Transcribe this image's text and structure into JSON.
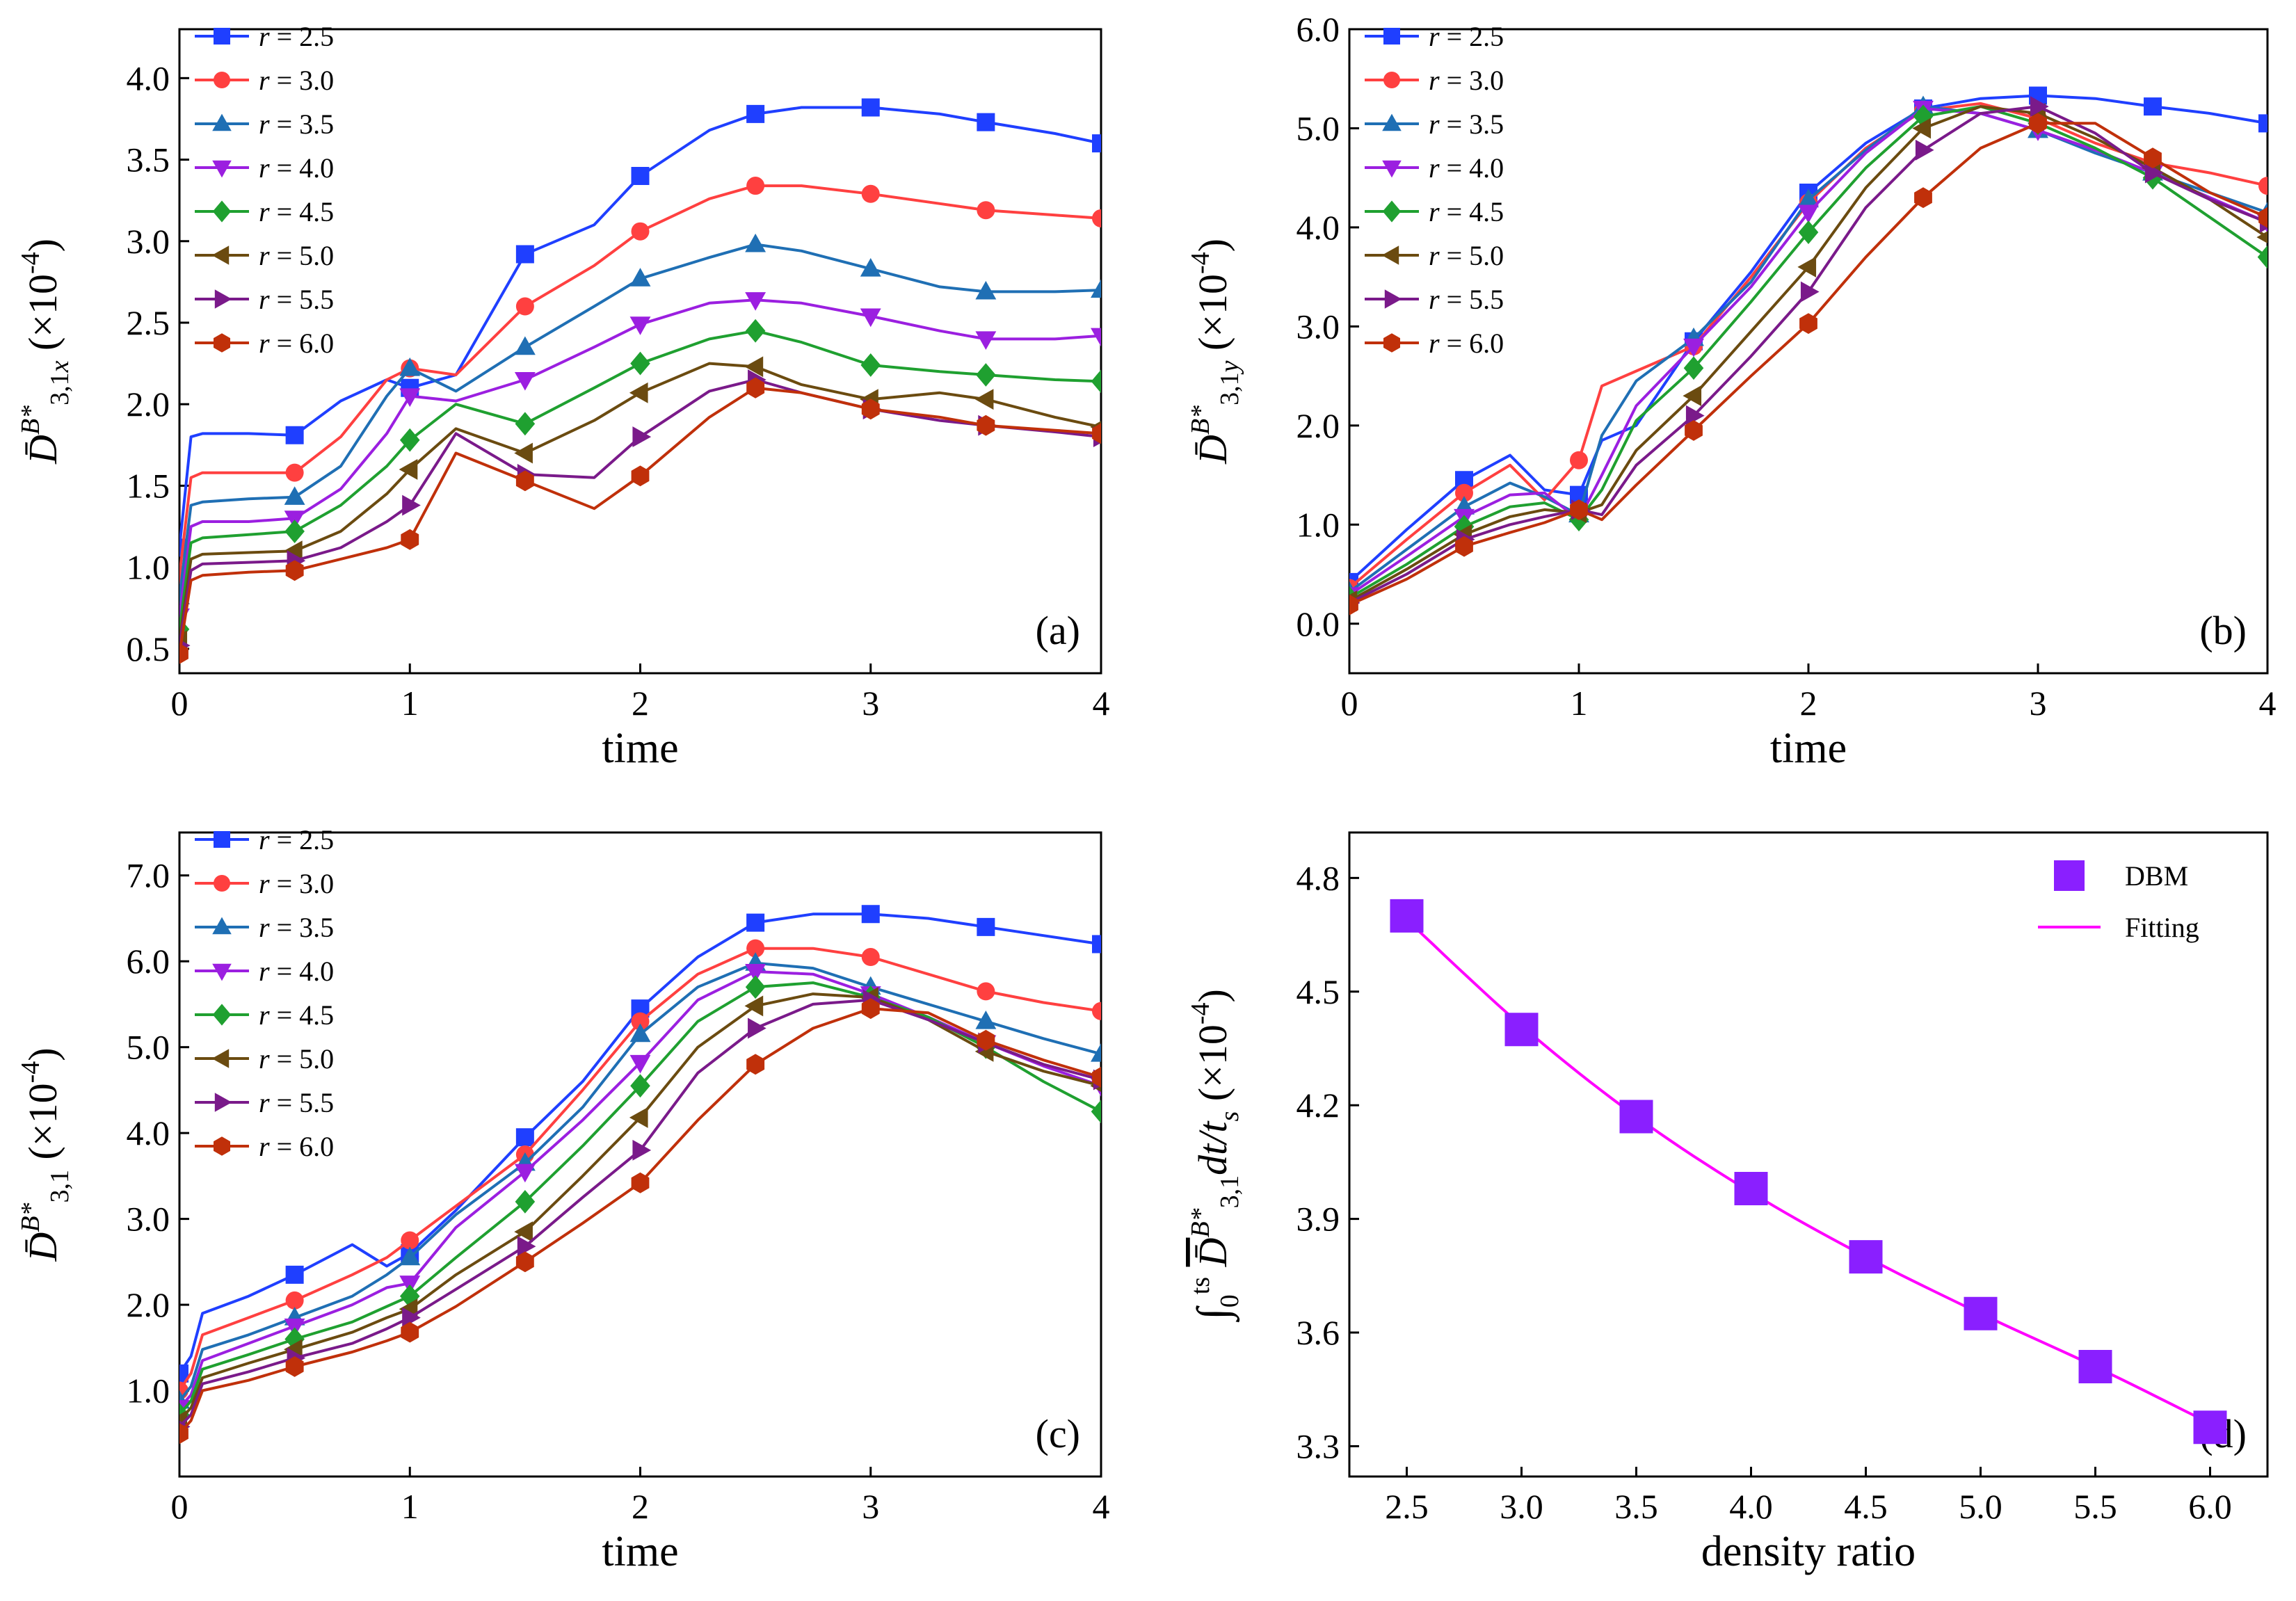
{
  "chart_data": [
    {
      "panel": "a",
      "type": "line",
      "panel_label": "(a)",
      "xlabel": "time",
      "ylabel": "D̄B*3,1x (×10⁻⁴)",
      "xlim": [
        0,
        4
      ],
      "ylim": [
        0.35,
        4.3
      ],
      "xticks": [
        0,
        1,
        2,
        3,
        4
      ],
      "yticks": [
        0.5,
        1.0,
        1.5,
        2.0,
        2.5,
        3.0,
        3.5,
        4.0
      ],
      "x": [
        0,
        0.05,
        0.1,
        0.3,
        0.5,
        0.7,
        0.9,
        1.0,
        1.2,
        1.5,
        1.8,
        2.0,
        2.3,
        2.5,
        2.7,
        3.0,
        3.3,
        3.5,
        3.8,
        4.0
      ],
      "legend": "top-left",
      "series": [
        {
          "name": "r = 2.5",
          "marker": "square",
          "color": "#1f3fff",
          "values": [
            1.12,
            1.8,
            1.82,
            1.82,
            1.81,
            2.02,
            2.15,
            2.1,
            2.18,
            2.92,
            3.1,
            3.4,
            3.68,
            3.78,
            3.82,
            3.82,
            3.78,
            3.73,
            3.66,
            3.6
          ]
        },
        {
          "name": "r = 3.0",
          "marker": "circle",
          "color": "#ff4040",
          "values": [
            0.95,
            1.55,
            1.58,
            1.58,
            1.58,
            1.8,
            2.15,
            2.22,
            2.18,
            2.6,
            2.85,
            3.06,
            3.26,
            3.34,
            3.34,
            3.29,
            3.23,
            3.19,
            3.16,
            3.14
          ]
        },
        {
          "name": "r = 3.5",
          "marker": "triangle-up",
          "color": "#1f6fb4",
          "values": [
            0.82,
            1.38,
            1.4,
            1.42,
            1.43,
            1.62,
            2.05,
            2.22,
            2.08,
            2.35,
            2.6,
            2.77,
            2.9,
            2.98,
            2.94,
            2.83,
            2.72,
            2.69,
            2.69,
            2.7
          ]
        },
        {
          "name": "r = 4.0",
          "marker": "triangle-down",
          "color": "#9b1fe0",
          "values": [
            0.7,
            1.25,
            1.28,
            1.28,
            1.3,
            1.48,
            1.82,
            2.05,
            2.02,
            2.15,
            2.35,
            2.49,
            2.62,
            2.64,
            2.62,
            2.54,
            2.45,
            2.4,
            2.4,
            2.42
          ]
        },
        {
          "name": "r = 4.5",
          "marker": "diamond",
          "color": "#1fa030",
          "values": [
            0.62,
            1.15,
            1.18,
            1.2,
            1.22,
            1.38,
            1.62,
            1.78,
            2.0,
            1.88,
            2.1,
            2.25,
            2.4,
            2.45,
            2.38,
            2.24,
            2.2,
            2.18,
            2.15,
            2.14
          ]
        },
        {
          "name": "r = 5.0",
          "marker": "triangle-left",
          "color": "#6b4b10",
          "values": [
            0.55,
            1.05,
            1.08,
            1.09,
            1.1,
            1.22,
            1.45,
            1.6,
            1.85,
            1.7,
            1.9,
            2.07,
            2.25,
            2.23,
            2.12,
            2.03,
            2.07,
            2.03,
            1.92,
            1.86
          ]
        },
        {
          "name": "r = 5.5",
          "marker": "triangle-right",
          "color": "#7a1a8a",
          "values": [
            0.52,
            0.98,
            1.02,
            1.03,
            1.04,
            1.12,
            1.28,
            1.38,
            1.82,
            1.57,
            1.55,
            1.8,
            2.08,
            2.15,
            2.07,
            1.97,
            1.9,
            1.87,
            1.83,
            1.8
          ]
        },
        {
          "name": "r = 6.0",
          "marker": "hexagon",
          "color": "#c0300a",
          "values": [
            0.47,
            0.92,
            0.95,
            0.97,
            0.98,
            1.05,
            1.12,
            1.17,
            1.7,
            1.53,
            1.36,
            1.56,
            1.92,
            2.1,
            2.07,
            1.97,
            1.92,
            1.87,
            1.84,
            1.82
          ]
        }
      ]
    },
    {
      "panel": "b",
      "type": "line",
      "panel_label": "(b)",
      "xlabel": "time",
      "ylabel": "D̄B*3,1y (×10⁻⁴)",
      "xlim": [
        0,
        4
      ],
      "ylim": [
        -0.5,
        6.0
      ],
      "xticks": [
        0,
        1,
        2,
        3,
        4
      ],
      "yticks": [
        0.0,
        1.0,
        2.0,
        3.0,
        4.0,
        5.0,
        6.0
      ],
      "x": [
        0,
        0.25,
        0.5,
        0.7,
        0.85,
        1.0,
        1.1,
        1.25,
        1.5,
        1.75,
        2.0,
        2.25,
        2.5,
        2.75,
        3.0,
        3.25,
        3.5,
        3.75,
        4.0
      ],
      "legend": "top-left",
      "series": [
        {
          "name": "r = 2.5",
          "marker": "square",
          "color": "#1f3fff",
          "values": [
            0.42,
            0.95,
            1.45,
            1.7,
            1.35,
            1.3,
            1.85,
            2.0,
            2.85,
            3.55,
            4.35,
            4.85,
            5.2,
            5.3,
            5.33,
            5.3,
            5.22,
            5.15,
            5.05
          ]
        },
        {
          "name": "r = 3.0",
          "marker": "circle",
          "color": "#ff4040",
          "values": [
            0.36,
            0.85,
            1.32,
            1.6,
            1.25,
            1.65,
            2.4,
            2.55,
            2.8,
            3.5,
            4.25,
            4.8,
            5.18,
            5.25,
            5.1,
            4.85,
            4.65,
            4.55,
            4.42
          ]
        },
        {
          "name": "r = 3.5",
          "marker": "triangle-up",
          "color": "#1f6fb4",
          "values": [
            0.32,
            0.75,
            1.18,
            1.42,
            1.28,
            1.1,
            1.9,
            2.45,
            2.88,
            3.45,
            4.28,
            4.78,
            5.22,
            5.15,
            4.98,
            4.75,
            4.55,
            4.35,
            4.15
          ]
        },
        {
          "name": "r = 4.0",
          "marker": "triangle-down",
          "color": "#9b1fe0",
          "values": [
            0.29,
            0.68,
            1.08,
            1.3,
            1.32,
            1.05,
            1.5,
            2.2,
            2.8,
            3.4,
            4.15,
            4.75,
            5.2,
            5.15,
            4.98,
            4.78,
            4.55,
            4.3,
            4.05
          ]
        },
        {
          "name": "r = 4.5",
          "marker": "diamond",
          "color": "#1fa030",
          "values": [
            0.26,
            0.6,
            0.98,
            1.18,
            1.22,
            1.05,
            1.35,
            2.05,
            2.58,
            3.25,
            3.95,
            4.6,
            5.12,
            5.22,
            5.05,
            4.8,
            4.5,
            4.1,
            3.7
          ]
        },
        {
          "name": "r = 5.0",
          "marker": "triangle-left",
          "color": "#6b4b10",
          "values": [
            0.23,
            0.55,
            0.9,
            1.08,
            1.15,
            1.12,
            1.2,
            1.75,
            2.3,
            2.95,
            3.6,
            4.4,
            5.0,
            5.22,
            5.15,
            4.9,
            4.6,
            4.28,
            3.9
          ]
        },
        {
          "name": "r = 5.5",
          "marker": "triangle-right",
          "color": "#7a1a8a",
          "values": [
            0.21,
            0.5,
            0.85,
            1.0,
            1.08,
            1.15,
            1.1,
            1.6,
            2.1,
            2.7,
            3.35,
            4.2,
            4.78,
            5.15,
            5.22,
            4.95,
            4.55,
            4.28,
            4.05
          ]
        },
        {
          "name": "r = 6.0",
          "marker": "hexagon",
          "color": "#c0300a",
          "values": [
            0.19,
            0.45,
            0.78,
            0.92,
            1.02,
            1.15,
            1.05,
            1.4,
            1.95,
            2.5,
            3.03,
            3.7,
            4.3,
            4.8,
            5.05,
            5.05,
            4.7,
            4.35,
            4.1
          ]
        }
      ]
    },
    {
      "panel": "c",
      "type": "line",
      "panel_label": "(c)",
      "xlabel": "time",
      "ylabel": "D̄B*3,1 (×10⁻⁴)",
      "xlim": [
        0,
        4
      ],
      "ylim": [
        0.0,
        7.5
      ],
      "xticks": [
        0,
        1,
        2,
        3,
        4
      ],
      "yticks": [
        1.0,
        2.0,
        3.0,
        4.0,
        5.0,
        6.0,
        7.0
      ],
      "x": [
        0,
        0.05,
        0.1,
        0.3,
        0.5,
        0.75,
        0.9,
        1.0,
        1.2,
        1.5,
        1.75,
        2.0,
        2.25,
        2.5,
        2.75,
        3.0,
        3.25,
        3.5,
        3.75,
        4.0
      ],
      "legend": "top-left",
      "series": [
        {
          "name": "r = 2.5",
          "marker": "square",
          "color": "#1f3fff",
          "values": [
            1.2,
            1.4,
            1.9,
            2.1,
            2.35,
            2.7,
            2.45,
            2.6,
            3.1,
            3.95,
            4.6,
            5.45,
            6.05,
            6.45,
            6.55,
            6.55,
            6.5,
            6.4,
            6.3,
            6.2
          ]
        },
        {
          "name": "r = 3.0",
          "marker": "circle",
          "color": "#ff4040",
          "values": [
            1.0,
            1.2,
            1.65,
            1.85,
            2.05,
            2.35,
            2.55,
            2.75,
            3.15,
            3.75,
            4.5,
            5.3,
            5.85,
            6.15,
            6.15,
            6.05,
            5.85,
            5.65,
            5.52,
            5.42
          ]
        },
        {
          "name": "r = 3.5",
          "marker": "triangle-up",
          "color": "#1f6fb4",
          "values": [
            0.88,
            1.05,
            1.48,
            1.65,
            1.85,
            2.1,
            2.35,
            2.55,
            3.05,
            3.65,
            4.3,
            5.15,
            5.7,
            5.98,
            5.92,
            5.7,
            5.5,
            5.3,
            5.1,
            4.92
          ]
        },
        {
          "name": "r = 4.0",
          "marker": "triangle-down",
          "color": "#9b1fe0",
          "values": [
            0.8,
            0.95,
            1.35,
            1.55,
            1.75,
            2.0,
            2.2,
            2.25,
            2.9,
            3.55,
            4.15,
            4.82,
            5.55,
            5.88,
            5.85,
            5.62,
            5.35,
            5.05,
            4.78,
            4.55
          ]
        },
        {
          "name": "r = 4.5",
          "marker": "diamond",
          "color": "#1fa030",
          "values": [
            0.72,
            0.88,
            1.25,
            1.42,
            1.6,
            1.8,
            1.98,
            2.1,
            2.55,
            3.2,
            3.85,
            4.55,
            5.3,
            5.7,
            5.75,
            5.58,
            5.35,
            5.0,
            4.6,
            4.25
          ]
        },
        {
          "name": "r = 5.0",
          "marker": "triangle-left",
          "color": "#6b4b10",
          "values": [
            0.65,
            0.8,
            1.15,
            1.32,
            1.48,
            1.68,
            1.85,
            1.95,
            2.35,
            2.85,
            3.5,
            4.18,
            5.0,
            5.48,
            5.62,
            5.58,
            5.32,
            4.95,
            4.72,
            4.55
          ]
        },
        {
          "name": "r = 5.5",
          "marker": "triangle-right",
          "color": "#7a1a8a",
          "values": [
            0.58,
            0.72,
            1.08,
            1.22,
            1.38,
            1.55,
            1.72,
            1.85,
            2.18,
            2.68,
            3.25,
            3.8,
            4.7,
            5.22,
            5.5,
            5.55,
            5.32,
            5.05,
            4.8,
            4.62
          ]
        },
        {
          "name": "r = 6.0",
          "marker": "hexagon",
          "color": "#c0300a",
          "values": [
            0.5,
            0.65,
            1.0,
            1.12,
            1.28,
            1.45,
            1.58,
            1.68,
            1.98,
            2.5,
            2.95,
            3.42,
            4.15,
            4.8,
            5.22,
            5.45,
            5.4,
            5.08,
            4.85,
            4.65
          ]
        }
      ]
    },
    {
      "panel": "d",
      "type": "scatter",
      "panel_label": "(d)",
      "xlabel": "density ratio",
      "ylabel": "∫₀^tₛ D̄B*3,1 dt/tₛ (×10⁻⁴)",
      "xlim": [
        2.25,
        6.25
      ],
      "ylim": [
        3.22,
        4.92
      ],
      "xticks": [
        2.5,
        3.0,
        3.5,
        4.0,
        4.5,
        5.0,
        5.5,
        6.0
      ],
      "yticks": [
        3.3,
        3.6,
        3.9,
        4.2,
        4.5,
        4.8
      ],
      "legend": "top-right",
      "series": [
        {
          "name": "DBM",
          "marker": "square",
          "color": "#8a1fff",
          "x": [
            2.5,
            3.0,
            3.5,
            4.0,
            4.5,
            5.0,
            5.5,
            6.0
          ],
          "values": [
            4.7,
            4.4,
            4.17,
            3.98,
            3.8,
            3.65,
            3.51,
            3.35
          ]
        },
        {
          "name": "Fitting",
          "marker": "none",
          "color": "#ff00ff",
          "x": [
            2.5,
            3.0,
            3.5,
            4.0,
            4.5,
            5.0,
            5.5,
            6.0
          ],
          "values": [
            4.69,
            4.41,
            4.17,
            3.97,
            3.8,
            3.65,
            3.51,
            3.36
          ]
        }
      ]
    }
  ]
}
